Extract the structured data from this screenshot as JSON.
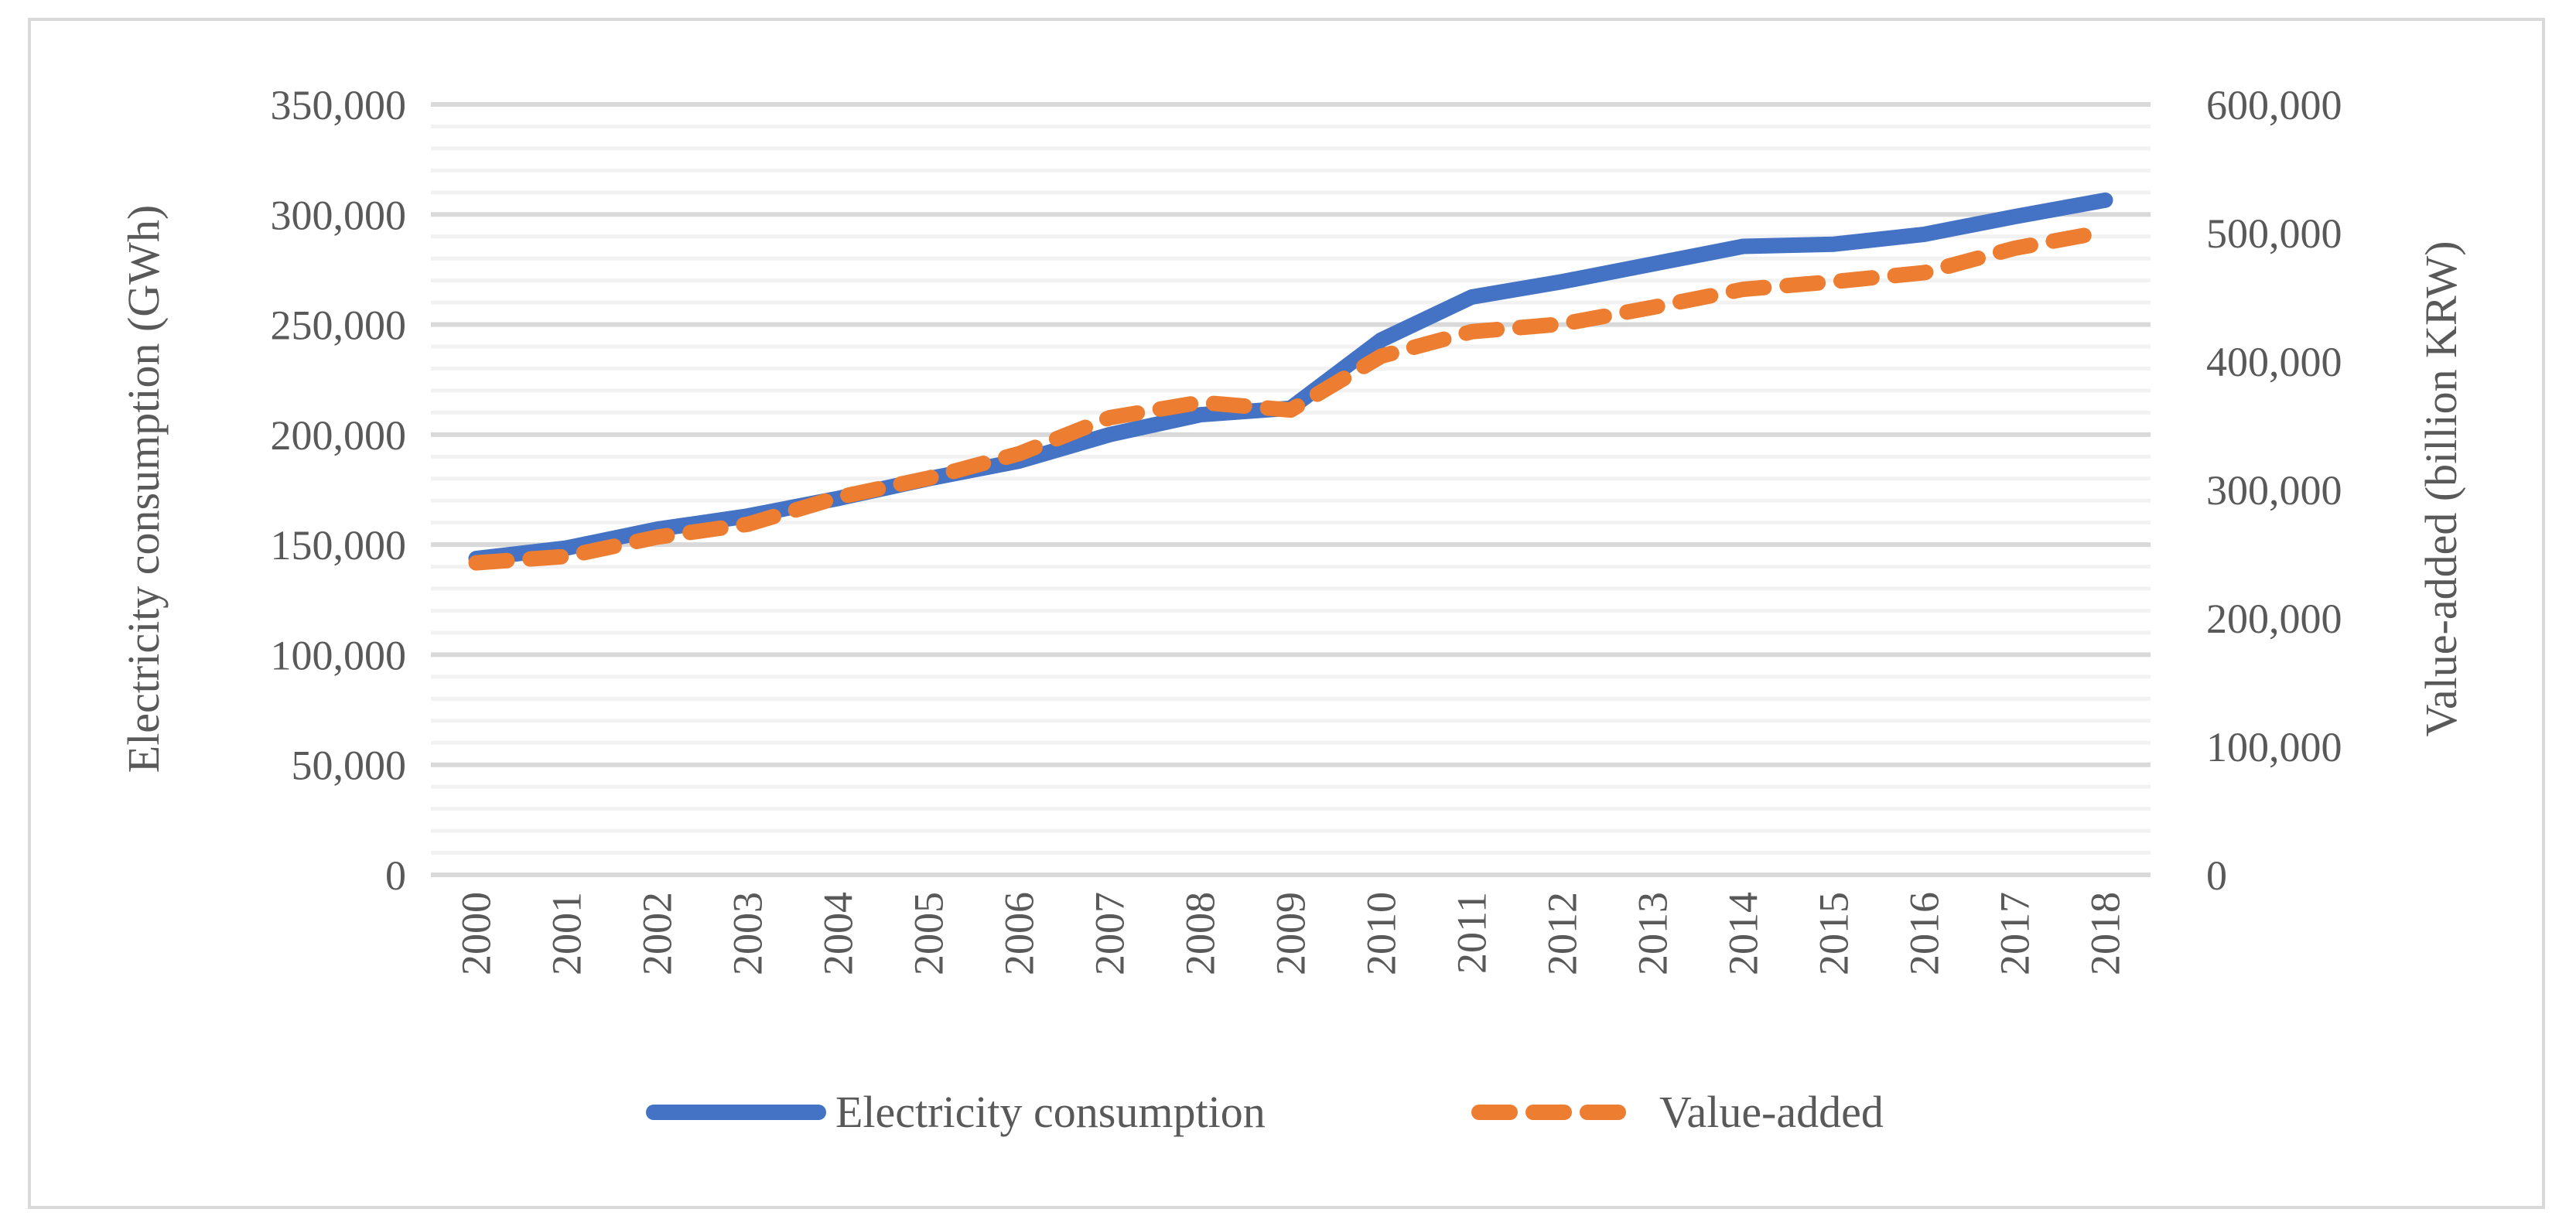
{
  "chart_data": {
    "type": "line",
    "title": "",
    "categories": [
      "2000",
      "2001",
      "2002",
      "2003",
      "2004",
      "2005",
      "2006",
      "2007",
      "2008",
      "2009",
      "2010",
      "2011",
      "2012",
      "2013",
      "2014",
      "2015",
      "2016",
      "2017",
      "2018"
    ],
    "series": [
      {
        "name": "Electricity consumption",
        "axis": "left",
        "color": "#4472C4",
        "dash": "solid",
        "values": [
          143700,
          148500,
          157000,
          163000,
          171000,
          180000,
          188000,
          200000,
          209000,
          212000,
          243000,
          262500,
          269500,
          277500,
          285500,
          286500,
          291000,
          299000,
          306500
        ]
      },
      {
        "name": "Value-added",
        "axis": "right",
        "color": "#ED7D31",
        "dash": "dashed",
        "values": [
          243000,
          248000,
          263000,
          273000,
          294000,
          309000,
          328000,
          356000,
          368000,
          362000,
          404000,
          423000,
          429000,
          442000,
          456000,
          462000,
          469000,
          488000,
          501000
        ]
      }
    ],
    "ylabel": "Electricity consumption (GWh)",
    "ylabel_right": "Value-added (billion KRW)",
    "ylim": [
      0,
      350000
    ],
    "ylim_right": [
      0,
      600000
    ],
    "yticks": [
      "0",
      "50,000",
      "100,000",
      "150,000",
      "200,000",
      "250,000",
      "300,000",
      "350,000"
    ],
    "yticks_right": [
      "0",
      "100,000",
      "200,000",
      "300,000",
      "400,000",
      "500,000",
      "600,000"
    ],
    "grid": true,
    "legend": "bottom",
    "gridline_major_color": "#D9D9D9",
    "gridline_minor_color": "#F2F2F2"
  }
}
